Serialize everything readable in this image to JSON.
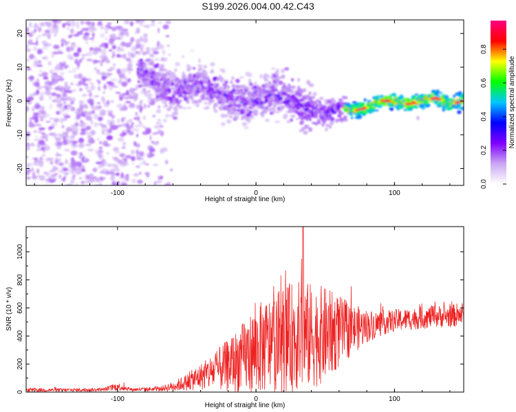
{
  "title": "S199.2026.004.00.42.C43",
  "chart_data": [
    {
      "type": "heatmap",
      "xlabel": "Height of straight line (km)",
      "ylabel": "Frequency (Hz)",
      "xlim": [
        -166,
        150
      ],
      "ylim": [
        -25,
        24
      ],
      "xticks": [
        -100,
        0,
        100
      ],
      "yticks": [
        -20,
        -10,
        0,
        10,
        20
      ],
      "colorbar": {
        "label": "Normalized spectral amplitude",
        "range": [
          0,
          0.97
        ],
        "ticks": [
          0.0,
          0.2,
          0.4,
          0.6,
          0.8
        ],
        "colors": [
          "#ffffff",
          "#c9a6f2",
          "#7f00ff",
          "#0000ff",
          "#00c8ff",
          "#00ff00",
          "#ffff00",
          "#ff0000",
          "#ff0080"
        ]
      },
      "ridge": {
        "x": [
          -80,
          -70,
          -60,
          -50,
          -40,
          -30,
          -20,
          -10,
          0,
          10,
          20,
          30,
          40,
          50,
          60,
          70,
          80,
          90,
          100,
          110,
          120,
          130,
          140,
          150
        ],
        "frequency": [
          9,
          5,
          2,
          4,
          5,
          3,
          1,
          0,
          0,
          2,
          2,
          -1,
          -3,
          -4,
          -2,
          -3,
          -2,
          0,
          0,
          -1,
          0,
          1,
          -1,
          0
        ]
      }
    },
    {
      "type": "line",
      "xlabel": "Height of straight line (km)",
      "ylabel": "SNR (10 * v/v)",
      "xlim": [
        -166,
        150
      ],
      "ylim": [
        0,
        1180
      ],
      "xticks": [
        -100,
        0,
        100
      ],
      "yticks": [
        0,
        200,
        400,
        600,
        800,
        1000
      ],
      "series": [
        {
          "name": "SNR",
          "color": "#ee2222",
          "x": [
            -166,
            -150,
            -130,
            -110,
            -100,
            -90,
            -80,
            -70,
            -60,
            -50,
            -40,
            -30,
            -20,
            -10,
            0,
            10,
            20,
            30,
            40,
            50,
            60,
            70,
            80,
            90,
            100,
            110,
            120,
            130,
            140,
            150
          ],
          "mean": [
            15,
            15,
            15,
            18,
            40,
            18,
            20,
            22,
            40,
            70,
            110,
            150,
            190,
            240,
            300,
            340,
            380,
            400,
            400,
            410,
            430,
            450,
            470,
            490,
            510,
            520,
            530,
            540,
            540,
            560
          ],
          "spread": [
            15,
            12,
            12,
            12,
            30,
            12,
            14,
            16,
            35,
            60,
            95,
            140,
            190,
            250,
            320,
            350,
            380,
            400,
            380,
            340,
            260,
            180,
            120,
            90,
            80,
            80,
            80,
            80,
            80,
            90
          ],
          "peak": {
            "x": 34,
            "y": 1175
          }
        }
      ]
    }
  ]
}
